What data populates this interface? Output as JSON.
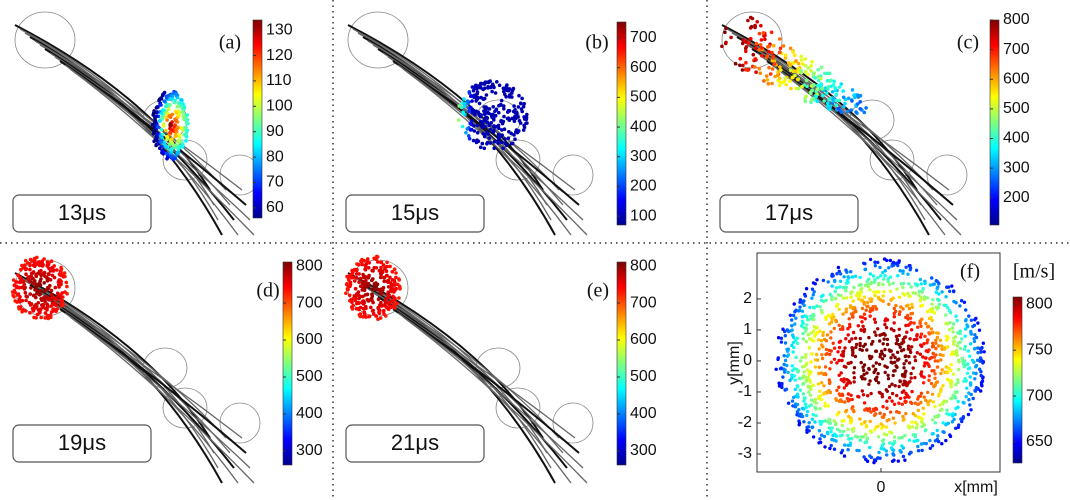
{
  "panels": [
    {
      "label": "(a)",
      "time": "13μs",
      "colorbar": {
        "lim": [
          56,
          134
        ],
        "ticks": [
          130,
          120,
          110,
          100,
          90,
          80,
          70,
          60
        ]
      }
    },
    {
      "label": "(b)",
      "time": "15μs",
      "colorbar": {
        "lim": [
          70,
          754
        ],
        "ticks": [
          700,
          600,
          500,
          400,
          300,
          200,
          100
        ]
      }
    },
    {
      "label": "(c)",
      "time": "17μs",
      "colorbar": {
        "lim": [
          108,
          800
        ],
        "ticks": [
          800,
          700,
          600,
          500,
          400,
          300,
          200
        ]
      }
    },
    {
      "label": "(d)",
      "time": "19μs",
      "colorbar": {
        "lim": [
          262,
          811
        ],
        "ticks": [
          800,
          700,
          600,
          500,
          400,
          300
        ]
      }
    },
    {
      "label": "(e)",
      "time": "21μs",
      "colorbar": {
        "lim": [
          262,
          811
        ],
        "ticks": [
          800,
          700,
          600,
          500,
          400,
          300
        ]
      }
    }
  ],
  "cross_section": {
    "label": "(f)",
    "unit": "[m/s]",
    "x_label": "x[mm]",
    "y_label": "y[mm]",
    "xlim": [
      -4.0,
      3.84
    ],
    "xticks": [
      0
    ],
    "ylim": [
      -3.58,
      3.48
    ],
    "yticks": [
      2,
      1,
      0,
      -1,
      -2,
      -3
    ],
    "colorbar": {
      "lim": [
        627,
        808
      ],
      "ticks": [
        800,
        750,
        700,
        650
      ]
    }
  }
}
